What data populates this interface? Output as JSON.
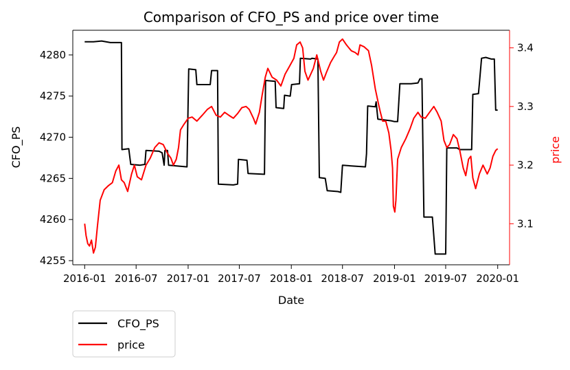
{
  "chart_data": {
    "type": "line",
    "title": "Comparison of CFO_PS and price over time",
    "xlabel": "Date",
    "ylabel_left": "CFO_PS",
    "ylabel_right": "price",
    "x_ticks": [
      "2016-01",
      "2016-07",
      "2017-01",
      "2017-07",
      "2018-01",
      "2018-07",
      "2019-01",
      "2019-07",
      "2020-01"
    ],
    "xlim": [
      "2015-11-20",
      "2020-02-12"
    ],
    "y_left_ticks": [
      4255,
      4260,
      4265,
      4270,
      4275,
      4280
    ],
    "y_left_lim": [
      4254.5,
      4283.0
    ],
    "y_right_ticks": [
      3.1,
      3.2,
      3.3,
      3.4
    ],
    "y_right_lim": [
      3.03,
      3.43
    ],
    "legend_position": "below-left",
    "colors": {
      "CFO_PS": "#000000",
      "price": "#ff0000",
      "right_axis": "#ff0000"
    },
    "series": [
      {
        "name": "CFO_PS",
        "axis": "left",
        "points": [
          [
            "2016-01-01",
            4281.6
          ],
          [
            "2016-02-01",
            4281.6
          ],
          [
            "2016-03-01",
            4281.7
          ],
          [
            "2016-04-01",
            4281.5
          ],
          [
            "2016-05-10",
            4281.5
          ],
          [
            "2016-05-12",
            4268.5
          ],
          [
            "2016-06-05",
            4268.6
          ],
          [
            "2016-06-12",
            4266.7
          ],
          [
            "2016-07-15",
            4266.6
          ],
          [
            "2016-08-01",
            4266.7
          ],
          [
            "2016-08-05",
            4268.4
          ],
          [
            "2016-09-20",
            4268.3
          ],
          [
            "2016-10-01",
            4268.1
          ],
          [
            "2016-10-08",
            4266.6
          ],
          [
            "2016-10-11",
            4268.4
          ],
          [
            "2016-10-20",
            4268.4
          ],
          [
            "2016-10-24",
            4266.6
          ],
          [
            "2016-12-28",
            4266.4
          ],
          [
            "2017-01-03",
            4278.3
          ],
          [
            "2017-01-28",
            4278.2
          ],
          [
            "2017-02-01",
            4276.4
          ],
          [
            "2017-03-20",
            4276.4
          ],
          [
            "2017-03-25",
            4278.1
          ],
          [
            "2017-04-15",
            4278.1
          ],
          [
            "2017-04-18",
            4264.3
          ],
          [
            "2017-06-10",
            4264.2
          ],
          [
            "2017-06-25",
            4264.3
          ],
          [
            "2017-06-28",
            4267.3
          ],
          [
            "2017-07-28",
            4267.2
          ],
          [
            "2017-08-01",
            4265.6
          ],
          [
            "2017-09-28",
            4265.5
          ],
          [
            "2017-10-02",
            4276.9
          ],
          [
            "2017-11-05",
            4276.8
          ],
          [
            "2017-11-08",
            4273.6
          ],
          [
            "2017-12-05",
            4273.5
          ],
          [
            "2017-12-08",
            4275.1
          ],
          [
            "2017-12-28",
            4275.0
          ],
          [
            "2018-01-02",
            4276.4
          ],
          [
            "2018-01-30",
            4276.5
          ],
          [
            "2018-02-02",
            4279.6
          ],
          [
            "2018-03-10",
            4279.5
          ],
          [
            "2018-03-15",
            4279.6
          ],
          [
            "2018-04-05",
            4279.5
          ],
          [
            "2018-04-10",
            4265.1
          ],
          [
            "2018-05-01",
            4265.0
          ],
          [
            "2018-05-08",
            4263.5
          ],
          [
            "2018-06-15",
            4263.4
          ],
          [
            "2018-06-25",
            4263.3
          ],
          [
            "2018-07-01",
            4266.6
          ],
          [
            "2018-08-05",
            4266.5
          ],
          [
            "2018-09-20",
            4266.4
          ],
          [
            "2018-09-24",
            4268.0
          ],
          [
            "2018-09-28",
            4273.8
          ],
          [
            "2018-10-25",
            4273.7
          ],
          [
            "2018-10-28",
            4274.3
          ],
          [
            "2018-11-03",
            4272.2
          ],
          [
            "2018-12-20",
            4272.0
          ],
          [
            "2019-01-01",
            4271.9
          ],
          [
            "2019-01-12",
            4271.9
          ],
          [
            "2019-01-20",
            4276.5
          ],
          [
            "2019-03-01",
            4276.5
          ],
          [
            "2019-03-25",
            4276.6
          ],
          [
            "2019-04-01",
            4277.1
          ],
          [
            "2019-04-08",
            4277.1
          ],
          [
            "2019-04-15",
            4260.3
          ],
          [
            "2019-05-15",
            4260.3
          ],
          [
            "2019-05-25",
            4255.8
          ],
          [
            "2019-06-22",
            4255.8
          ],
          [
            "2019-07-01",
            4255.8
          ],
          [
            "2019-07-05",
            4268.7
          ],
          [
            "2019-08-10",
            4268.7
          ],
          [
            "2019-08-20",
            4268.5
          ],
          [
            "2019-10-01",
            4268.5
          ],
          [
            "2019-10-05",
            4275.2
          ],
          [
            "2019-10-25",
            4275.3
          ],
          [
            "2019-10-28",
            4276.5
          ],
          [
            "2019-11-05",
            4279.6
          ],
          [
            "2019-11-20",
            4279.7
          ],
          [
            "2019-12-10",
            4279.5
          ],
          [
            "2019-12-20",
            4279.5
          ],
          [
            "2019-12-25",
            4273.3
          ],
          [
            "2020-01-01",
            4273.3
          ]
        ]
      },
      {
        "name": "price",
        "axis": "right",
        "points": [
          [
            "2016-01-01",
            3.1
          ],
          [
            "2016-01-06",
            3.08
          ],
          [
            "2016-01-12",
            3.066
          ],
          [
            "2016-01-18",
            3.062
          ],
          [
            "2016-01-25",
            3.072
          ],
          [
            "2016-02-01",
            3.05
          ],
          [
            "2016-02-08",
            3.06
          ],
          [
            "2016-02-15",
            3.095
          ],
          [
            "2016-02-25",
            3.14
          ],
          [
            "2016-03-10",
            3.158
          ],
          [
            "2016-03-25",
            3.165
          ],
          [
            "2016-04-08",
            3.17
          ],
          [
            "2016-04-20",
            3.19
          ],
          [
            "2016-05-01",
            3.2
          ],
          [
            "2016-05-10",
            3.175
          ],
          [
            "2016-05-20",
            3.17
          ],
          [
            "2016-06-01",
            3.155
          ],
          [
            "2016-06-15",
            3.185
          ],
          [
            "2016-06-25",
            3.2
          ],
          [
            "2016-07-05",
            3.18
          ],
          [
            "2016-07-20",
            3.175
          ],
          [
            "2016-08-05",
            3.2
          ],
          [
            "2016-08-20",
            3.212
          ],
          [
            "2016-09-05",
            3.23
          ],
          [
            "2016-09-20",
            3.238
          ],
          [
            "2016-10-05",
            3.235
          ],
          [
            "2016-10-20",
            3.22
          ],
          [
            "2016-11-01",
            3.212
          ],
          [
            "2016-11-10",
            3.2
          ],
          [
            "2016-11-20",
            3.21
          ],
          [
            "2016-11-28",
            3.23
          ],
          [
            "2016-12-05",
            3.26
          ],
          [
            "2016-12-15",
            3.268
          ],
          [
            "2017-01-01",
            3.28
          ],
          [
            "2017-01-15",
            3.282
          ],
          [
            "2017-02-01",
            3.275
          ],
          [
            "2017-02-20",
            3.285
          ],
          [
            "2017-03-10",
            3.295
          ],
          [
            "2017-03-25",
            3.3
          ],
          [
            "2017-04-10",
            3.285
          ],
          [
            "2017-04-25",
            3.282
          ],
          [
            "2017-05-10",
            3.29
          ],
          [
            "2017-05-25",
            3.285
          ],
          [
            "2017-06-10",
            3.28
          ],
          [
            "2017-06-25",
            3.288
          ],
          [
            "2017-07-10",
            3.298
          ],
          [
            "2017-07-25",
            3.3
          ],
          [
            "2017-08-05",
            3.295
          ],
          [
            "2017-08-20",
            3.28
          ],
          [
            "2017-08-28",
            3.27
          ],
          [
            "2017-09-10",
            3.29
          ],
          [
            "2017-09-20",
            3.32
          ],
          [
            "2017-10-01",
            3.35
          ],
          [
            "2017-10-10",
            3.365
          ],
          [
            "2017-10-25",
            3.35
          ],
          [
            "2017-11-10",
            3.345
          ],
          [
            "2017-11-25",
            3.335
          ],
          [
            "2017-12-10",
            3.355
          ],
          [
            "2017-12-25",
            3.368
          ],
          [
            "2018-01-10",
            3.382
          ],
          [
            "2018-01-20",
            3.405
          ],
          [
            "2018-02-01",
            3.41
          ],
          [
            "2018-02-10",
            3.4
          ],
          [
            "2018-02-18",
            3.36
          ],
          [
            "2018-03-01",
            3.345
          ],
          [
            "2018-03-20",
            3.365
          ],
          [
            "2018-04-01",
            3.388
          ],
          [
            "2018-04-15",
            3.36
          ],
          [
            "2018-04-25",
            3.345
          ],
          [
            "2018-05-05",
            3.358
          ],
          [
            "2018-05-20",
            3.375
          ],
          [
            "2018-06-01",
            3.385
          ],
          [
            "2018-06-10",
            3.392
          ],
          [
            "2018-06-20",
            3.41
          ],
          [
            "2018-07-01",
            3.415
          ],
          [
            "2018-07-15",
            3.405
          ],
          [
            "2018-08-01",
            3.395
          ],
          [
            "2018-08-15",
            3.392
          ],
          [
            "2018-08-25",
            3.388
          ],
          [
            "2018-09-01",
            3.405
          ],
          [
            "2018-09-15",
            3.402
          ],
          [
            "2018-10-01",
            3.395
          ],
          [
            "2018-10-12",
            3.37
          ],
          [
            "2018-10-25",
            3.33
          ],
          [
            "2018-11-05",
            3.305
          ],
          [
            "2018-11-12",
            3.29
          ],
          [
            "2018-11-20",
            3.275
          ],
          [
            "2018-12-01",
            3.275
          ],
          [
            "2018-12-12",
            3.255
          ],
          [
            "2018-12-20",
            3.225
          ],
          [
            "2018-12-25",
            3.195
          ],
          [
            "2018-12-28",
            3.13
          ],
          [
            "2019-01-02",
            3.12
          ],
          [
            "2019-01-06",
            3.14
          ],
          [
            "2019-01-12",
            3.21
          ],
          [
            "2019-01-25",
            3.23
          ],
          [
            "2019-02-10",
            3.245
          ],
          [
            "2019-02-25",
            3.262
          ],
          [
            "2019-03-10",
            3.28
          ],
          [
            "2019-03-25",
            3.29
          ],
          [
            "2019-04-05",
            3.282
          ],
          [
            "2019-04-20",
            3.28
          ],
          [
            "2019-05-05",
            3.29
          ],
          [
            "2019-05-20",
            3.3
          ],
          [
            "2019-06-01",
            3.29
          ],
          [
            "2019-06-15",
            3.275
          ],
          [
            "2019-06-25",
            3.242
          ],
          [
            "2019-07-05",
            3.23
          ],
          [
            "2019-07-15",
            3.235
          ],
          [
            "2019-07-28",
            3.252
          ],
          [
            "2019-08-10",
            3.245
          ],
          [
            "2019-08-20",
            3.225
          ],
          [
            "2019-09-01",
            3.195
          ],
          [
            "2019-09-10",
            3.182
          ],
          [
            "2019-09-20",
            3.21
          ],
          [
            "2019-09-28",
            3.215
          ],
          [
            "2019-10-05",
            3.178
          ],
          [
            "2019-10-15",
            3.16
          ],
          [
            "2019-10-28",
            3.185
          ],
          [
            "2019-11-10",
            3.2
          ],
          [
            "2019-11-25",
            3.185
          ],
          [
            "2019-12-05",
            3.195
          ],
          [
            "2019-12-15",
            3.215
          ],
          [
            "2019-12-25",
            3.225
          ],
          [
            "2020-01-01",
            3.228
          ]
        ]
      }
    ]
  }
}
